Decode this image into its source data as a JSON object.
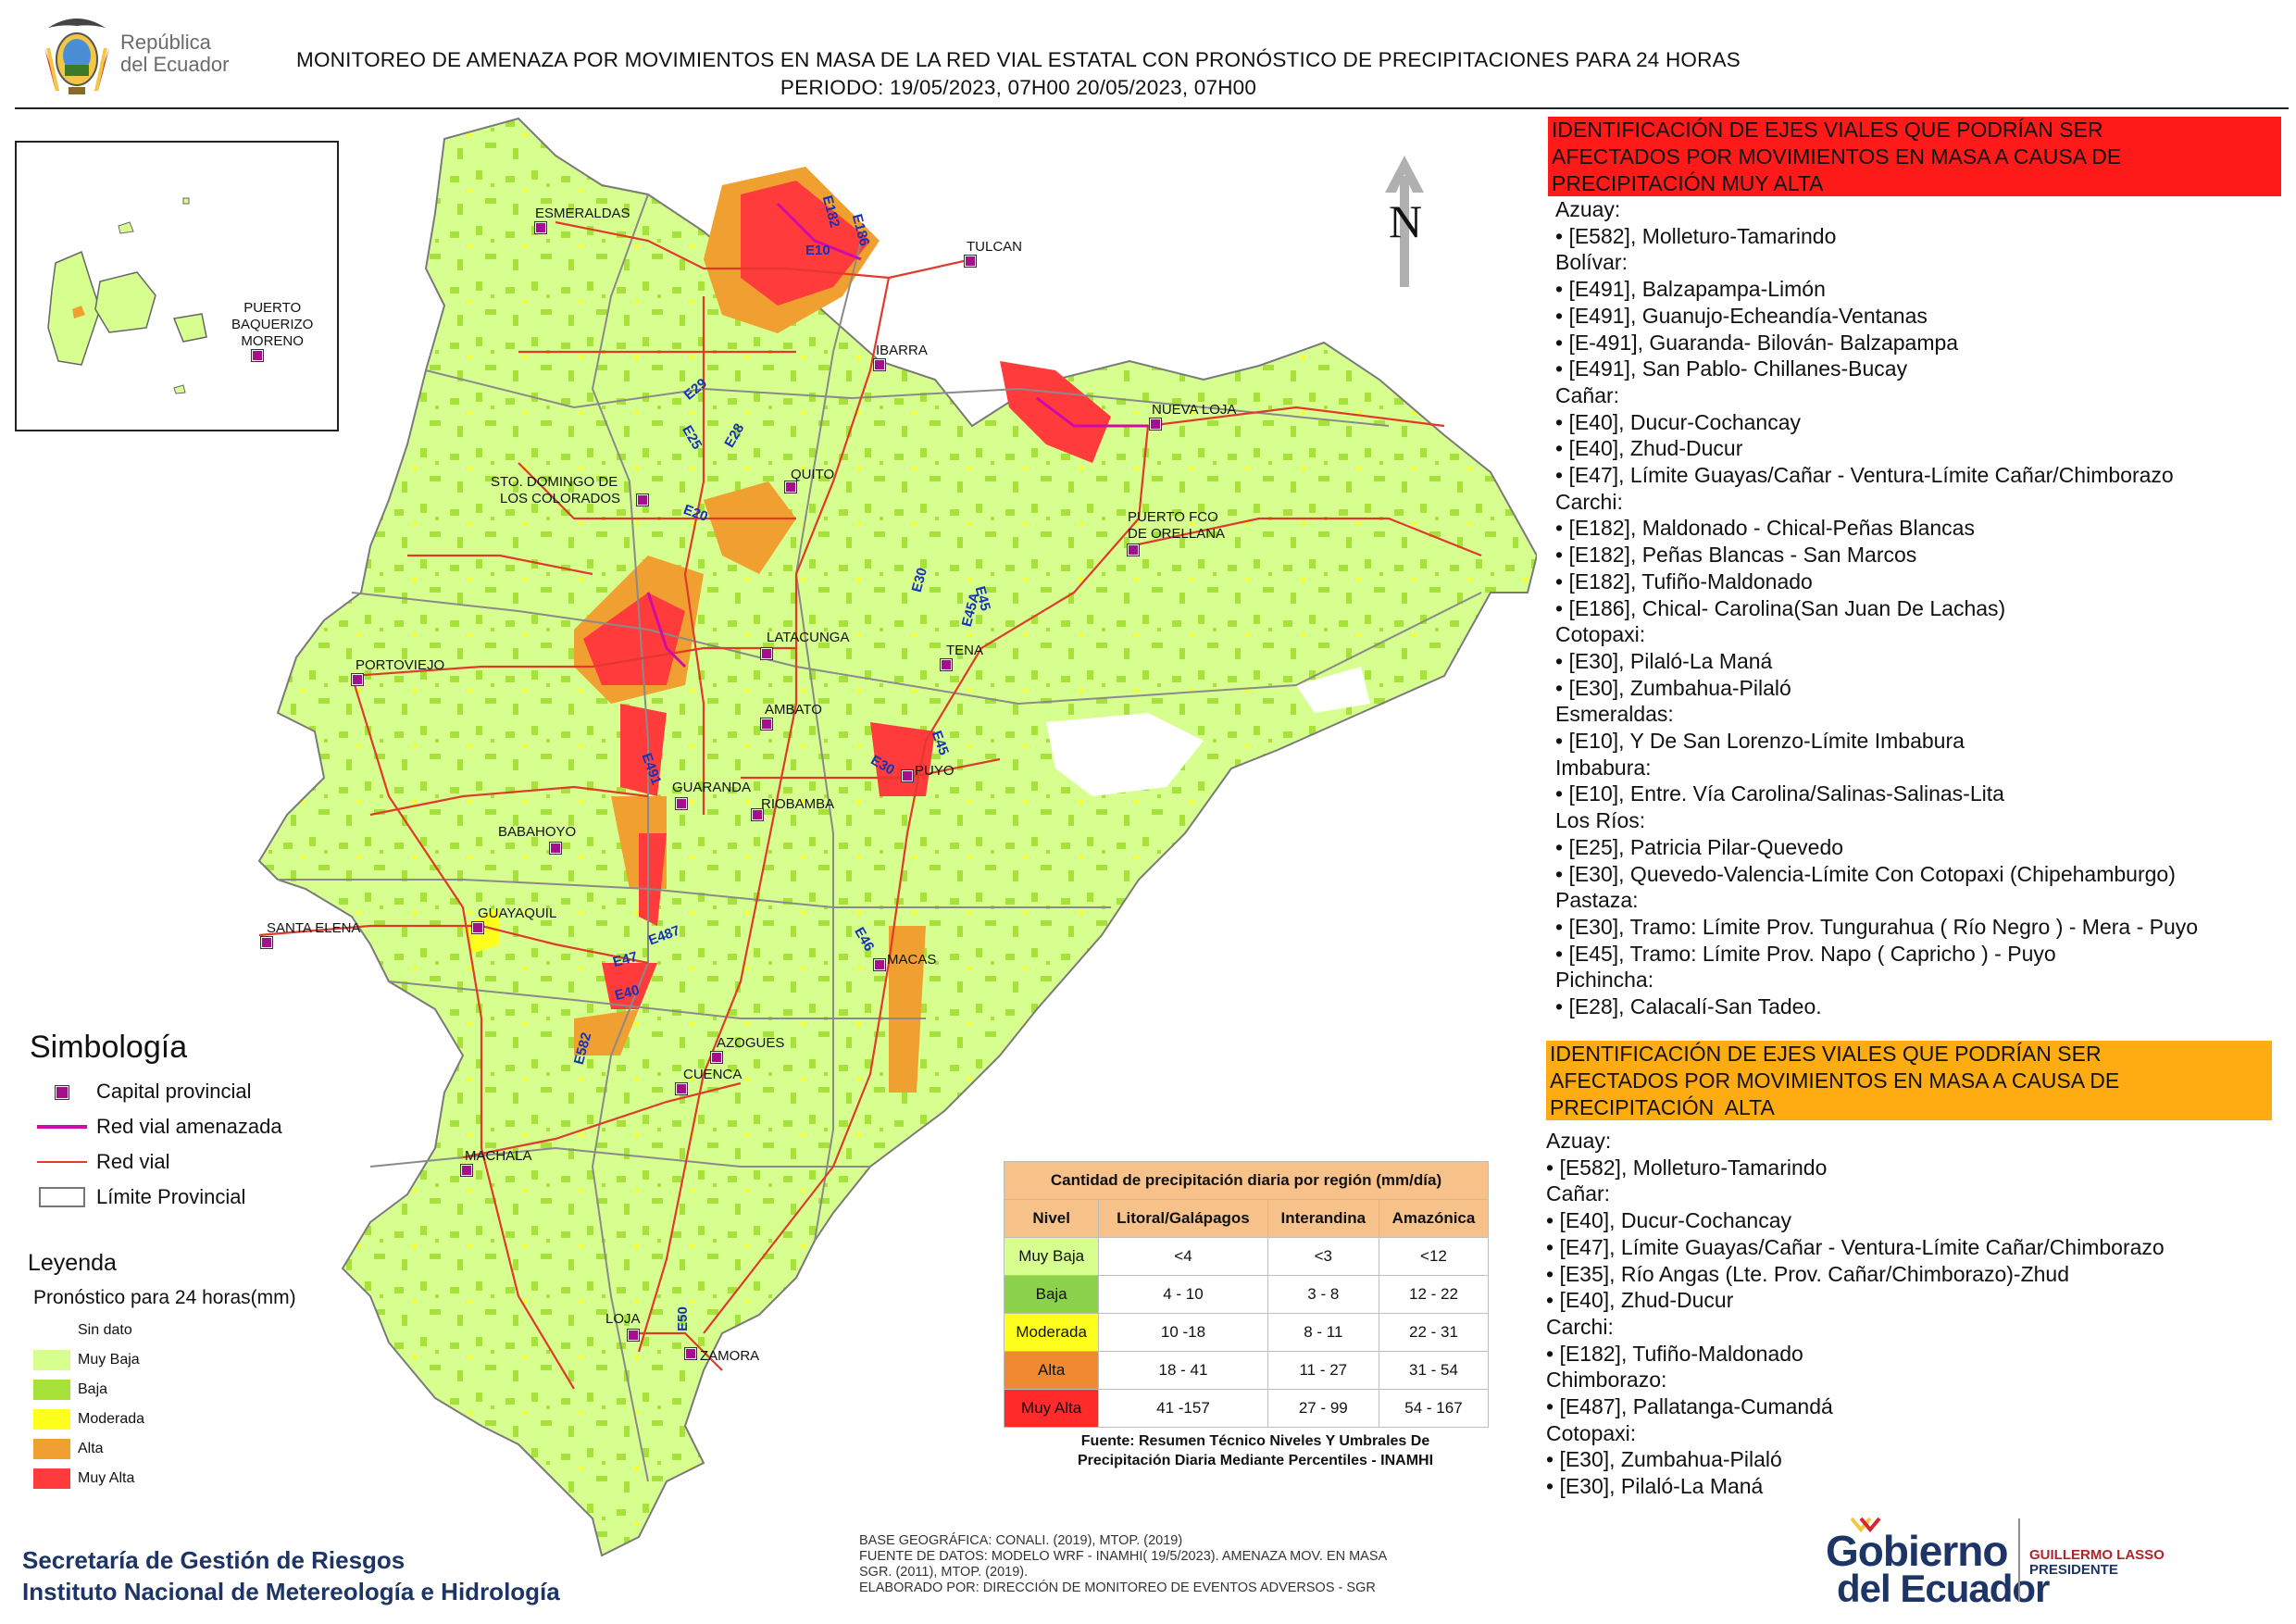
{
  "header": {
    "brand_line1": "República",
    "brand_line2": "del Ecuador",
    "title_line1": "MONITOREO DE AMENAZA POR MOVIMIENTOS EN MASA DE LA RED VIAL  ESTATAL  CON PRONÓSTICO  DE  PRECIPITACIONES PARA 24 HORAS",
    "title_line2": "PERIODO: 19/05/2023, 07H00 20/05/2023, 07H00"
  },
  "map": {
    "north_label": "N",
    "inset_city": "PUERTO\nBAQUERIZO\nMORENO",
    "inset_city_lines": [
      "PUERTO",
      "BAQUERIZO",
      "MORENO"
    ],
    "cities": [
      "ESMERALDAS",
      "TULCAN",
      "IBARRA",
      "NUEVA LOJA",
      "QUITO",
      "STO. DOMINGO DE",
      "LOS COLORADOS",
      "PUERTO FCO",
      "DE ORELLANA",
      "LATACUNGA",
      "TENA",
      "PORTOVIEJO",
      "AMBATO",
      "PUYO",
      "GUARANDA",
      "RIOBAMBA",
      "BABAHOYO",
      "SANTA ELENA",
      "GUAYAQUIL",
      "MACAS",
      "AZOGUES",
      "CUENCA",
      "MACHALA",
      "LOJA",
      "ZAMORA"
    ],
    "roads": [
      "E182",
      "E186",
      "E10",
      "E29",
      "E25",
      "E28",
      "E20",
      "E30",
      "E45",
      "E45A",
      "E491",
      "E30",
      "E46",
      "E45",
      "E487",
      "E47",
      "E40",
      "E582",
      "E50"
    ],
    "colors": {
      "muy_baja": "#d7ff8f",
      "baja": "#a6e23a",
      "moderada": "#ffff1e",
      "alta": "#f0a030",
      "muy_alta": "#ff3b3b",
      "roads": "#e03a2a",
      "threatened_roads": "#d10aa8",
      "provincial_limit": "#7a7a7a"
    }
  },
  "simbologia": {
    "title": "Simbología",
    "items": [
      {
        "icon": "capital-icon",
        "label": "Capital provincial"
      },
      {
        "icon": "threatened-road-line",
        "label": "Red vial amenazada"
      },
      {
        "icon": "road-line",
        "label": "Red vial"
      },
      {
        "icon": "province-limit-box",
        "label": "Límite Provincial"
      }
    ]
  },
  "leyenda": {
    "title": "Leyenda",
    "subtitle": "Pronóstico para 24 horas(mm)",
    "items": [
      {
        "label": "Sin dato",
        "color": "#ffffff"
      },
      {
        "label": "Muy Baja",
        "color": "#d7ff8f"
      },
      {
        "label": "Baja",
        "color": "#a6e23a"
      },
      {
        "label": "Moderada",
        "color": "#ffff1e"
      },
      {
        "label": "Alta",
        "color": "#f0a030"
      },
      {
        "label": "Muy Alta",
        "color": "#ff3b3b"
      }
    ]
  },
  "precip_table": {
    "title": "Cantidad de precipitación diaria por región (mm/día)",
    "headers": [
      "Nivel",
      "Litoral/Galápagos",
      "Interandina",
      "Amazónica"
    ],
    "rows": [
      {
        "nivel": "Muy Baja",
        "color": "#d7ff8f",
        "litoral": "<4",
        "interandina": "<3",
        "amazonica": "<12"
      },
      {
        "nivel": "Baja",
        "color": "#8cd24b",
        "litoral": "4 - 10",
        "interandina": "3 - 8",
        "amazonica": "12 - 22"
      },
      {
        "nivel": "Moderada",
        "color": "#ffff1e",
        "litoral": "10 -18",
        "interandina": "8 - 11",
        "amazonica": "22 - 31"
      },
      {
        "nivel": "Alta",
        "color": "#f08a30",
        "litoral": "18 - 41",
        "interandina": "11 - 27",
        "amazonica": "31 - 54"
      },
      {
        "nivel": "Muy Alta",
        "color": "#ff2a2a",
        "litoral": "41 -157",
        "interandina": "27 - 99",
        "amazonica": "54 - 167"
      }
    ],
    "source_line1": "Fuente: Resumen Técnico Niveles Y Umbrales De",
    "source_line2": "Precipitación Diaria Mediante Percentiles - INAMHI"
  },
  "footer": {
    "org_line1": "Secretaría de Gestión de Riesgos",
    "org_line2": "Instituto Nacional de Metereología e Hidrología",
    "sources_line1": "BASE GEOGRÁFICA: CONALI. (2019), MTOP. (2019)",
    "sources_line2": "FUENTE DE DATOS: MODELO WRF - INAMHI( 19/5/2023).  AMENAZA MOV. EN MASA",
    "sources_line3": "SGR. (2011), MTOP. (2019).",
    "sources_line4": "ELABORADO POR: DIRECCIÓN DE MONITOREO DE EVENTOS ADVERSOS - SGR",
    "gob_line1": "Gobierno",
    "gob_line2": "del Ecuador",
    "president_line1": "GUILLERMO LASSO",
    "president_line2": "PRESIDENTE"
  },
  "panel_muy_alta": {
    "heading": "IDENTIFICACIÓN DE EJES VIALES QUE PODRÍAN SER\nAFECTADOS POR MOVIMIENTOS EN MASA A CAUSA DE\nPRECIPITACIÓN MUY ALTA",
    "lines": "Azuay:\n• [E582], Molleturo-Tamarindo\nBolívar:\n• [E491], Balzapampa-Limón\n• [E491], Guanujo-Echeandía-Ventanas\n• [E-491], Guaranda- Bilován- Balzapampa\n• [E491], San Pablo- Chillanes-Bucay\nCañar:\n• [E40], Ducur-Cochancay\n• [E40], Zhud-Ducur\n• [E47], Límite Guayas/Cañar - Ventura-Límite Cañar/Chimborazo\nCarchi:\n• [E182], Maldonado - Chical-Peñas Blancas\n• [E182], Peñas Blancas - San Marcos\n• [E182], Tufiño-Maldonado\n• [E186], Chical- Carolina(San Juan De Lachas)\nCotopaxi:\n• [E30], Pilaló-La Maná\n• [E30], Zumbahua-Pilaló\nEsmeraldas:\n• [E10], Y De San Lorenzo-Límite Imbabura\nImbabura:\n• [E10], Entre. Vía Carolina/Salinas-Salinas-Lita\nLos Ríos:\n• [E25], Patricia Pilar-Quevedo\n• [E30], Quevedo-Valencia-Límite Con Cotopaxi (Chipehamburgo)\nPastaza:\n• [E30], Tramo: Límite Prov. Tungurahua ( Río Negro ) - Mera - Puyo\n• [E45], Tramo: Límite Prov. Napo ( Capricho ) - Puyo\nPichincha:\n• [E28], Calacalí-San Tadeo."
  },
  "panel_alta": {
    "heading": "IDENTIFICACIÓN DE EJES VIALES QUE PODRÍAN SER\nAFECTADOS POR MOVIMIENTOS EN MASA A CAUSA DE\nPRECIPITACIÓN  ALTA",
    "lines": "Azuay:\n• [E582], Molleturo-Tamarindo\nCañar:\n• [E40], Ducur-Cochancay\n• [E47], Límite Guayas/Cañar - Ventura-Límite Cañar/Chimborazo\n• [E35], Río Angas (Lte. Prov. Cañar/Chimborazo)-Zhud\n• [E40], Zhud-Ducur\nCarchi:\n• [E182], Tufiño-Maldonado\nChimborazo:\n• [E487], Pallatanga-Cumandá\nCotopaxi:\n• [E30], Zumbahua-Pilaló\n• [E30], Pilaló-La Maná"
  }
}
